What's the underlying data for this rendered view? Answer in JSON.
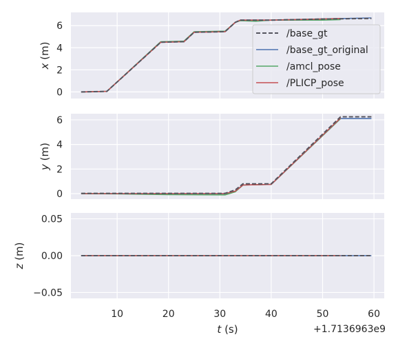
{
  "chart_data": {
    "type": "line",
    "x_offset_label": "+1.7136963e9",
    "xlabel_var": "t",
    "xlabel_unit": " (s)",
    "xlim": [
      1,
      62
    ],
    "xticks": [
      10,
      20,
      30,
      40,
      50,
      60
    ],
    "legend": {
      "placement": "upper-right of top panel",
      "entries": [
        {
          "label": "/base_gt",
          "color": "#55555f",
          "dashed": true
        },
        {
          "label": "/base_gt_original",
          "color": "#4c72b0",
          "dashed": false
        },
        {
          "label": "/amcl_pose",
          "color": "#55a868",
          "dashed": false
        },
        {
          "label": "/PLICP_pose",
          "color": "#c44e52",
          "dashed": false
        }
      ]
    },
    "panels": [
      {
        "var": "x",
        "unit": " (m)",
        "ylim": [
          -0.6,
          7.2
        ],
        "yticks": [
          0,
          2,
          4,
          6
        ],
        "ytick_labels": [
          "0",
          "2",
          "4",
          "6"
        ],
        "series": [
          {
            "name": "/base_gt_original",
            "color": "#4c72b0",
            "dashed": false,
            "x": [
              3,
              8,
              18.5,
              23,
              25,
              31,
              33,
              34,
              40,
              50,
              59.5
            ],
            "y": [
              0,
              0.05,
              4.5,
              4.55,
              5.4,
              5.45,
              6.3,
              6.5,
              6.5,
              6.6,
              6.7
            ]
          },
          {
            "name": "/amcl_pose",
            "color": "#55a868",
            "dashed": false,
            "x": [
              3,
              8,
              18.5,
              23,
              25,
              31,
              33,
              34,
              37,
              40,
              50,
              53.5
            ],
            "y": [
              0,
              0.05,
              4.55,
              4.6,
              5.45,
              5.5,
              6.3,
              6.45,
              6.4,
              6.5,
              6.5,
              6.55
            ]
          },
          {
            "name": "/PLICP_pose",
            "color": "#c44e52",
            "dashed": false,
            "x": [
              3,
              8,
              18.5,
              23,
              25,
              31,
              33,
              34,
              40,
              50,
              53.5
            ],
            "y": [
              0,
              0.05,
              4.5,
              4.55,
              5.4,
              5.45,
              6.3,
              6.5,
              6.5,
              6.6,
              6.65
            ]
          },
          {
            "name": "/base_gt",
            "color": "#55555f",
            "dashed": true,
            "x": [
              3,
              8,
              18.5,
              23,
              25,
              31,
              33,
              34,
              40,
              50,
              59.5
            ],
            "y": [
              0,
              0.05,
              4.5,
              4.55,
              5.4,
              5.45,
              6.3,
              6.5,
              6.5,
              6.6,
              6.65
            ]
          }
        ]
      },
      {
        "var": "y",
        "unit": " (m)",
        "ylim": [
          -0.45,
          6.5
        ],
        "yticks": [
          0,
          2,
          4,
          6
        ],
        "ytick_labels": [
          "0",
          "2",
          "4",
          "6"
        ],
        "series": [
          {
            "name": "/base_gt_original",
            "color": "#4c72b0",
            "dashed": false,
            "x": [
              3,
              31,
              33,
              34.5,
              40,
              53.5,
              59.5
            ],
            "y": [
              0,
              0,
              0.2,
              0.7,
              0.75,
              6.1,
              6.1
            ]
          },
          {
            "name": "/amcl_pose",
            "color": "#55a868",
            "dashed": false,
            "x": [
              3,
              10,
              20,
              31,
              33,
              34.5,
              40,
              53.5
            ],
            "y": [
              0,
              -0.02,
              -0.08,
              -0.1,
              0.15,
              0.7,
              0.75,
              6.1
            ]
          },
          {
            "name": "/PLICP_pose",
            "color": "#c44e52",
            "dashed": false,
            "x": [
              3,
              31,
              33,
              34.5,
              40,
              53.5
            ],
            "y": [
              0,
              0,
              0.2,
              0.7,
              0.75,
              6.15
            ]
          },
          {
            "name": "/base_gt",
            "color": "#55555f",
            "dashed": true,
            "x": [
              3,
              31,
              33,
              34.5,
              40,
              53.5,
              59.5
            ],
            "y": [
              0.02,
              0.02,
              0.3,
              0.8,
              0.8,
              6.25,
              6.25
            ]
          }
        ]
      },
      {
        "var": "z",
        "unit": " (m)",
        "ylim": [
          -0.058,
          0.058
        ],
        "yticks": [
          0.05,
          0,
          -0.05
        ],
        "ytick_labels": [
          "0.05",
          "0.00",
          "−0.05"
        ],
        "series": [
          {
            "name": "/base_gt_original",
            "color": "#4c72b0",
            "dashed": false,
            "x": [
              3,
              59.5
            ],
            "y": [
              0,
              0
            ]
          },
          {
            "name": "/amcl_pose",
            "color": "#55a868",
            "dashed": false,
            "x": [
              3,
              53.5
            ],
            "y": [
              0,
              0
            ]
          },
          {
            "name": "/PLICP_pose",
            "color": "#c44e52",
            "dashed": false,
            "x": [
              3,
              53.5
            ],
            "y": [
              0,
              0
            ]
          },
          {
            "name": "/base_gt",
            "color": "#55555f",
            "dashed": true,
            "x": [
              3,
              59.5
            ],
            "y": [
              0,
              0
            ]
          }
        ]
      }
    ]
  }
}
